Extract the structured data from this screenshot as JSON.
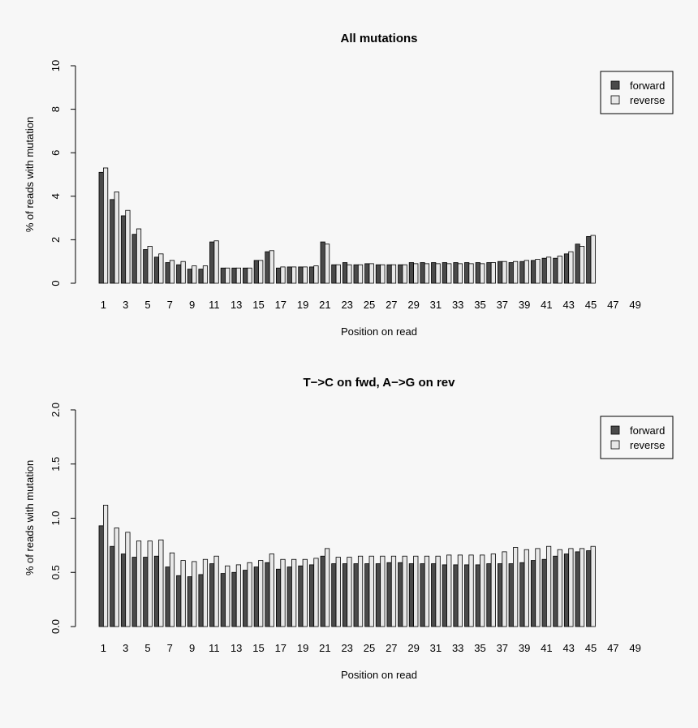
{
  "colors": {
    "forward": "#4a4a4a",
    "reverse": "#e8e8e8",
    "stroke": "#000000",
    "background": "#f7f7f7"
  },
  "chart_data": [
    {
      "type": "bar",
      "title": "All mutations",
      "xlabel": "Position on read",
      "ylabel": "% of reads with mutation",
      "ylim": [
        0,
        10
      ],
      "yticks": [
        "0",
        "2",
        "4",
        "6",
        "8",
        "10"
      ],
      "ytick_values": [
        0,
        2,
        4,
        6,
        8,
        10
      ],
      "categories": [
        1,
        2,
        3,
        4,
        5,
        6,
        7,
        8,
        9,
        10,
        11,
        12,
        13,
        14,
        15,
        16,
        17,
        18,
        19,
        20,
        21,
        22,
        23,
        24,
        25,
        26,
        27,
        28,
        29,
        30,
        31,
        32,
        33,
        34,
        35,
        36,
        37,
        38,
        39,
        40,
        41,
        42,
        43,
        44,
        45,
        46,
        47,
        48,
        49,
        50
      ],
      "xtick_labels": [
        "1",
        "3",
        "5",
        "7",
        "9",
        "11",
        "13",
        "15",
        "17",
        "19",
        "21",
        "23",
        "25",
        "27",
        "29",
        "31",
        "33",
        "35",
        "37",
        "39",
        "41",
        "43",
        "45",
        "47",
        "49"
      ],
      "legend": {
        "position": "top-right",
        "entries": [
          "forward",
          "reverse"
        ]
      },
      "series": [
        {
          "name": "forward",
          "values": [
            5.1,
            3.85,
            3.1,
            2.25,
            1.55,
            1.2,
            0.95,
            0.85,
            0.65,
            0.65,
            1.9,
            0.7,
            0.7,
            0.7,
            1.05,
            1.45,
            0.7,
            0.75,
            0.75,
            0.75,
            1.9,
            0.85,
            0.95,
            0.85,
            0.9,
            0.85,
            0.85,
            0.85,
            0.95,
            0.95,
            0.95,
            0.95,
            0.95,
            0.95,
            0.95,
            0.95,
            1.0,
            0.95,
            1.0,
            1.05,
            1.15,
            1.15,
            1.35,
            1.8,
            2.15,
            0,
            0,
            0,
            0,
            0
          ]
        },
        {
          "name": "reverse",
          "values": [
            5.3,
            4.2,
            3.35,
            2.5,
            1.7,
            1.35,
            1.05,
            1.0,
            0.8,
            0.8,
            1.95,
            0.7,
            0.7,
            0.7,
            1.05,
            1.5,
            0.75,
            0.75,
            0.75,
            0.8,
            1.8,
            0.85,
            0.85,
            0.85,
            0.9,
            0.85,
            0.85,
            0.85,
            0.9,
            0.9,
            0.9,
            0.9,
            0.9,
            0.9,
            0.9,
            0.95,
            1.0,
            1.0,
            1.05,
            1.1,
            1.2,
            1.25,
            1.45,
            1.7,
            2.2,
            0,
            0,
            0,
            0,
            0
          ]
        }
      ]
    },
    {
      "type": "bar",
      "title": "T−>C on fwd, A−>G on rev",
      "xlabel": "Position on read",
      "ylabel": "% of reads with mutation",
      "ylim": [
        0,
        2
      ],
      "yticks": [
        "0.0",
        "0.5",
        "1.0",
        "1.5",
        "2.0"
      ],
      "ytick_values": [
        0,
        0.5,
        1.0,
        1.5,
        2.0
      ],
      "categories": [
        1,
        2,
        3,
        4,
        5,
        6,
        7,
        8,
        9,
        10,
        11,
        12,
        13,
        14,
        15,
        16,
        17,
        18,
        19,
        20,
        21,
        22,
        23,
        24,
        25,
        26,
        27,
        28,
        29,
        30,
        31,
        32,
        33,
        34,
        35,
        36,
        37,
        38,
        39,
        40,
        41,
        42,
        43,
        44,
        45,
        46,
        47,
        48,
        49,
        50
      ],
      "xtick_labels": [
        "1",
        "3",
        "5",
        "7",
        "9",
        "11",
        "13",
        "15",
        "17",
        "19",
        "21",
        "23",
        "25",
        "27",
        "29",
        "31",
        "33",
        "35",
        "37",
        "39",
        "41",
        "43",
        "45",
        "47",
        "49"
      ],
      "legend": {
        "position": "top-right",
        "entries": [
          "forward",
          "reverse"
        ]
      },
      "series": [
        {
          "name": "forward",
          "values": [
            0.93,
            0.74,
            0.67,
            0.64,
            0.64,
            0.65,
            0.55,
            0.47,
            0.46,
            0.48,
            0.58,
            0.49,
            0.5,
            0.52,
            0.55,
            0.59,
            0.53,
            0.55,
            0.56,
            0.57,
            0.65,
            0.58,
            0.58,
            0.58,
            0.58,
            0.58,
            0.59,
            0.59,
            0.58,
            0.58,
            0.58,
            0.57,
            0.57,
            0.57,
            0.57,
            0.58,
            0.58,
            0.58,
            0.59,
            0.61,
            0.62,
            0.65,
            0.67,
            0.69,
            0.7,
            0,
            0,
            0,
            0,
            0
          ]
        },
        {
          "name": "reverse",
          "values": [
            1.12,
            0.91,
            0.87,
            0.79,
            0.79,
            0.8,
            0.68,
            0.61,
            0.6,
            0.62,
            0.65,
            0.56,
            0.57,
            0.59,
            0.61,
            0.67,
            0.62,
            0.62,
            0.62,
            0.63,
            0.72,
            0.64,
            0.64,
            0.65,
            0.65,
            0.65,
            0.65,
            0.65,
            0.65,
            0.65,
            0.65,
            0.66,
            0.66,
            0.66,
            0.66,
            0.67,
            0.69,
            0.73,
            0.71,
            0.72,
            0.74,
            0.71,
            0.72,
            0.72,
            0.74,
            0,
            0,
            0,
            0,
            0
          ]
        }
      ]
    }
  ]
}
